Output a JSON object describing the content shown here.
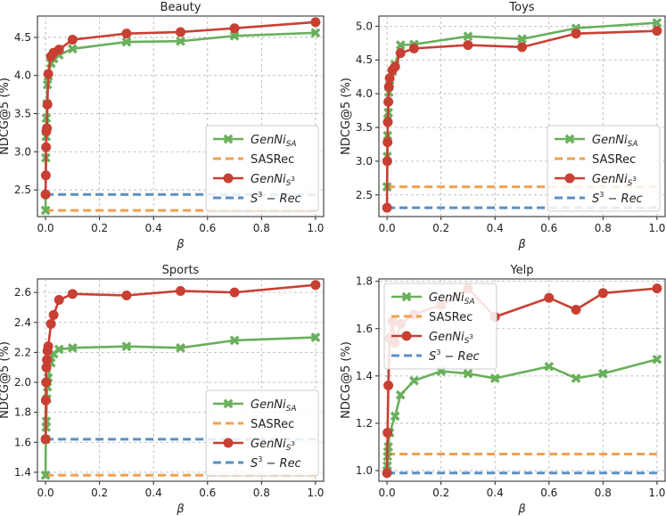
{
  "colors": {
    "genni_sa": "#6aaf5c",
    "sasrec": "#f0a050",
    "genni_s3": "#c84033",
    "s3rec": "#5b8fc2"
  },
  "chart_data": [
    {
      "type": "line",
      "title": "Beauty",
      "xlabel": "β",
      "ylabel": "NDCG@5 (%)",
      "xlim": [
        -0.03,
        1.03
      ],
      "ylim": [
        2.15,
        4.78
      ],
      "xticks": [
        0.0,
        0.2,
        0.4,
        0.6,
        0.8,
        1.0
      ],
      "xtick_labels": [
        "0.0",
        "0.2",
        "0.4",
        "0.6",
        "0.8",
        "1.0"
      ],
      "yticks": [
        2.5,
        3.0,
        3.5,
        4.0,
        4.5
      ],
      "ytick_labels": [
        "2.5",
        "3.0",
        "3.5",
        "4.0",
        "4.5"
      ],
      "legend_loc": "lower-right",
      "series": [
        {
          "name": "GenNiSA",
          "kind": "marker-x",
          "x": [
            0.0,
            0.001,
            0.002,
            0.003,
            0.005,
            0.007,
            0.01,
            0.02,
            0.03,
            0.05,
            0.1,
            0.3,
            0.5,
            0.7,
            1.0
          ],
          "y": [
            2.23,
            2.92,
            3.2,
            3.44,
            3.63,
            3.88,
            3.99,
            4.16,
            4.22,
            4.27,
            4.35,
            4.44,
            4.45,
            4.52,
            4.56
          ]
        },
        {
          "name": "SASRec",
          "kind": "baseline",
          "x": [
            0.0,
            1.0
          ],
          "y": [
            2.23,
            2.23
          ]
        },
        {
          "name": "GenNiS3",
          "kind": "marker-o",
          "x": [
            0.0,
            0.001,
            0.002,
            0.003,
            0.005,
            0.007,
            0.01,
            0.02,
            0.03,
            0.05,
            0.1,
            0.3,
            0.5,
            0.7,
            1.0
          ],
          "y": [
            2.44,
            2.69,
            3.06,
            3.27,
            3.31,
            3.62,
            4.02,
            4.25,
            4.3,
            4.34,
            4.47,
            4.55,
            4.57,
            4.62,
            4.7
          ]
        },
        {
          "name": "S3-Rec",
          "kind": "baseline",
          "x": [
            0.0,
            1.0
          ],
          "y": [
            2.44,
            2.44
          ]
        }
      ]
    },
    {
      "type": "line",
      "title": "Toys",
      "xlabel": "β",
      "ylabel": "NDCG@5 (%)",
      "xlim": [
        -0.03,
        1.03
      ],
      "ylim": [
        2.18,
        5.15
      ],
      "xticks": [
        0.0,
        0.2,
        0.4,
        0.6,
        0.8,
        1.0
      ],
      "xtick_labels": [
        "0.0",
        "0.2",
        "0.4",
        "0.6",
        "0.8",
        "1.0"
      ],
      "yticks": [
        2.5,
        3.0,
        3.5,
        4.0,
        4.5,
        5.0
      ],
      "ytick_labels": [
        "2.5",
        "3.0",
        "3.5",
        "4.0",
        "4.5",
        "5.0"
      ],
      "legend_loc": "lower-right",
      "series": [
        {
          "name": "GenNiSA",
          "kind": "marker-x",
          "x": [
            0.0,
            0.001,
            0.002,
            0.003,
            0.005,
            0.007,
            0.01,
            0.02,
            0.03,
            0.05,
            0.1,
            0.3,
            0.5,
            0.7,
            1.0
          ],
          "y": [
            2.62,
            3.07,
            3.38,
            3.62,
            3.72,
            4.02,
            4.2,
            4.33,
            4.43,
            4.72,
            4.73,
            4.85,
            4.81,
            4.97,
            5.05
          ]
        },
        {
          "name": "SASRec",
          "kind": "baseline",
          "x": [
            0.0,
            1.0
          ],
          "y": [
            2.62,
            2.62
          ]
        },
        {
          "name": "GenNiS3",
          "kind": "marker-o",
          "x": [
            0.0,
            0.001,
            0.002,
            0.003,
            0.005,
            0.007,
            0.01,
            0.02,
            0.03,
            0.05,
            0.1,
            0.3,
            0.5,
            0.7,
            1.0
          ],
          "y": [
            2.31,
            3.0,
            3.28,
            3.58,
            3.88,
            4.1,
            4.23,
            4.35,
            4.4,
            4.6,
            4.67,
            4.72,
            4.69,
            4.89,
            4.93
          ]
        },
        {
          "name": "S3-Rec",
          "kind": "baseline",
          "x": [
            0.0,
            1.0
          ],
          "y": [
            2.31,
            2.31
          ]
        }
      ]
    },
    {
      "type": "line",
      "title": "Sports",
      "xlabel": "β",
      "ylabel": "NDCG@5 (%)",
      "xlim": [
        -0.03,
        1.03
      ],
      "ylim": [
        1.34,
        2.69
      ],
      "xticks": [
        0.0,
        0.2,
        0.4,
        0.6,
        0.8,
        1.0
      ],
      "xtick_labels": [
        "0.0",
        "0.2",
        "0.4",
        "0.6",
        "0.8",
        "1.0"
      ],
      "yticks": [
        1.4,
        1.6,
        1.8,
        2.0,
        2.2,
        2.4,
        2.6
      ],
      "ytick_labels": [
        "1.4",
        "1.6",
        "1.8",
        "2.0",
        "2.2",
        "2.4",
        "2.6"
      ],
      "legend_loc": "lower-right",
      "series": [
        {
          "name": "GenNiSA",
          "kind": "marker-x",
          "x": [
            0.0,
            0.001,
            0.002,
            0.003,
            0.005,
            0.007,
            0.01,
            0.02,
            0.03,
            0.05,
            0.1,
            0.3,
            0.5,
            0.7,
            1.0
          ],
          "y": [
            1.38,
            1.62,
            1.7,
            1.74,
            1.89,
            1.97,
            2.03,
            2.13,
            2.19,
            2.22,
            2.23,
            2.24,
            2.23,
            2.28,
            2.3
          ]
        },
        {
          "name": "SASRec",
          "kind": "baseline",
          "x": [
            0.0,
            1.0
          ],
          "y": [
            1.38,
            1.38
          ]
        },
        {
          "name": "GenNiS3",
          "kind": "marker-o",
          "x": [
            0.0,
            0.001,
            0.002,
            0.003,
            0.005,
            0.007,
            0.01,
            0.02,
            0.03,
            0.05,
            0.1,
            0.3,
            0.5,
            0.7,
            1.0
          ],
          "y": [
            1.62,
            1.88,
            2.0,
            2.1,
            2.15,
            2.21,
            2.24,
            2.39,
            2.45,
            2.55,
            2.59,
            2.58,
            2.61,
            2.6,
            2.65
          ]
        },
        {
          "name": "S3-Rec",
          "kind": "baseline",
          "x": [
            0.0,
            1.0
          ],
          "y": [
            1.62,
            1.62
          ]
        }
      ]
    },
    {
      "type": "line",
      "title": "Yelp",
      "xlabel": "β",
      "ylabel": "NDCG@5 (%)",
      "xlim": [
        -0.03,
        1.03
      ],
      "ylim": [
        0.955,
        1.81
      ],
      "xticks": [
        0.0,
        0.2,
        0.4,
        0.6,
        0.8,
        1.0
      ],
      "xtick_labels": [
        "0.0",
        "0.2",
        "0.4",
        "0.6",
        "0.8",
        "1.0"
      ],
      "yticks": [
        1.0,
        1.2,
        1.4,
        1.6,
        1.8
      ],
      "ytick_labels": [
        "1.0",
        "1.2",
        "1.4",
        "1.6",
        "1.8"
      ],
      "legend_loc": "upper-left",
      "series": [
        {
          "name": "GenNiSA",
          "kind": "marker-x",
          "x": [
            0.0,
            0.001,
            0.002,
            0.003,
            0.005,
            0.01,
            0.03,
            0.05,
            0.1,
            0.2,
            0.3,
            0.4,
            0.6,
            0.7,
            0.8,
            1.0
          ],
          "y": [
            1.0,
            1.02,
            1.06,
            1.08,
            1.1,
            1.16,
            1.23,
            1.32,
            1.38,
            1.42,
            1.41,
            1.39,
            1.44,
            1.39,
            1.41,
            1.47
          ]
        },
        {
          "name": "SASRec",
          "kind": "baseline",
          "x": [
            0.0,
            1.0
          ],
          "y": [
            1.07,
            1.07
          ]
        },
        {
          "name": "GenNiS3",
          "kind": "marker-o",
          "x": [
            0.0,
            0.002,
            0.005,
            0.01,
            0.02,
            0.03,
            0.05,
            0.1,
            0.2,
            0.3,
            0.4,
            0.6,
            0.7,
            0.8,
            1.0
          ],
          "y": [
            0.99,
            1.16,
            1.36,
            1.56,
            1.63,
            1.54,
            1.62,
            1.66,
            1.7,
            1.77,
            1.65,
            1.73,
            1.68,
            1.75,
            1.77
          ]
        },
        {
          "name": "S3-Rec",
          "kind": "baseline",
          "x": [
            0.0,
            1.0
          ],
          "y": [
            0.99,
            0.99
          ]
        }
      ]
    }
  ]
}
